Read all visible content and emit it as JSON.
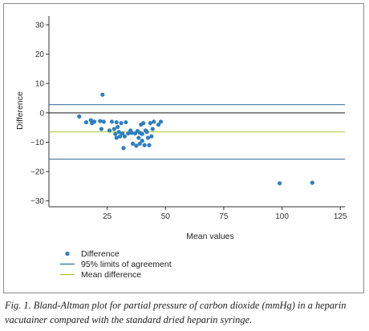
{
  "caption": "Fig. 1. Bland-Altman plot for partial pressure of carbon dioxide (mmHg) in a heparin vacutainer compared with the standard dried heparin syringe.",
  "chart_data": {
    "type": "scatter",
    "xlabel": "Mean values",
    "ylabel": "Difference",
    "xlim": [
      0,
      127
    ],
    "ylim": [
      -32,
      33
    ],
    "xticks": [
      25,
      50,
      75,
      100,
      125
    ],
    "yticks": [
      30,
      20,
      10,
      0,
      -10,
      -20,
      -30
    ],
    "grid": false,
    "legend_position": "bottom-left",
    "zero_line": 0,
    "series": [
      {
        "name": "Difference",
        "kind": "points",
        "color": "#2f7fbf",
        "points": [
          [
            13,
            -1.2
          ],
          [
            16,
            -3.2
          ],
          [
            18,
            -2.5
          ],
          [
            18.5,
            -3.5
          ],
          [
            19.5,
            -3
          ],
          [
            22,
            -2.8
          ],
          [
            22.5,
            -5.5
          ],
          [
            23,
            6.2
          ],
          [
            23.5,
            -3
          ],
          [
            26,
            -6
          ],
          [
            27,
            -3
          ],
          [
            28,
            -5.5
          ],
          [
            28.5,
            -7.2
          ],
          [
            29,
            -8.5
          ],
          [
            29,
            -3.2
          ],
          [
            29.5,
            -4.8
          ],
          [
            30,
            -6.5
          ],
          [
            30.5,
            -8
          ],
          [
            31,
            -3.5
          ],
          [
            31.5,
            -7
          ],
          [
            32,
            -12
          ],
          [
            32.5,
            -8
          ],
          [
            33,
            -3.2
          ],
          [
            34,
            -7
          ],
          [
            35,
            -6
          ],
          [
            35.5,
            -6.8
          ],
          [
            36,
            -10.5
          ],
          [
            37,
            -7
          ],
          [
            37.5,
            -11.2
          ],
          [
            38,
            -6.2
          ],
          [
            38.5,
            -8.5
          ],
          [
            39,
            -10.5
          ],
          [
            39,
            -6.8
          ],
          [
            39.5,
            -4
          ],
          [
            40,
            -7.2
          ],
          [
            40,
            -9.5
          ],
          [
            40.5,
            -3.5
          ],
          [
            41,
            -11
          ],
          [
            41.5,
            -6
          ],
          [
            42,
            -6.5
          ],
          [
            42.5,
            -8.5
          ],
          [
            43,
            -11
          ],
          [
            43.5,
            -3.5
          ],
          [
            44,
            -8
          ],
          [
            44.5,
            -5.5
          ],
          [
            45,
            -3
          ],
          [
            47,
            -4
          ],
          [
            48,
            -3
          ],
          [
            99,
            -24
          ],
          [
            113,
            -23.8
          ]
        ]
      },
      {
        "name": "95% limits of agreement",
        "kind": "hline",
        "color": "#2f6a9a",
        "values": [
          2.8,
          -15.8
        ]
      },
      {
        "name": "Mean difference",
        "kind": "hline",
        "color": "#a8c43c",
        "values": [
          -6.5
        ]
      }
    ]
  }
}
